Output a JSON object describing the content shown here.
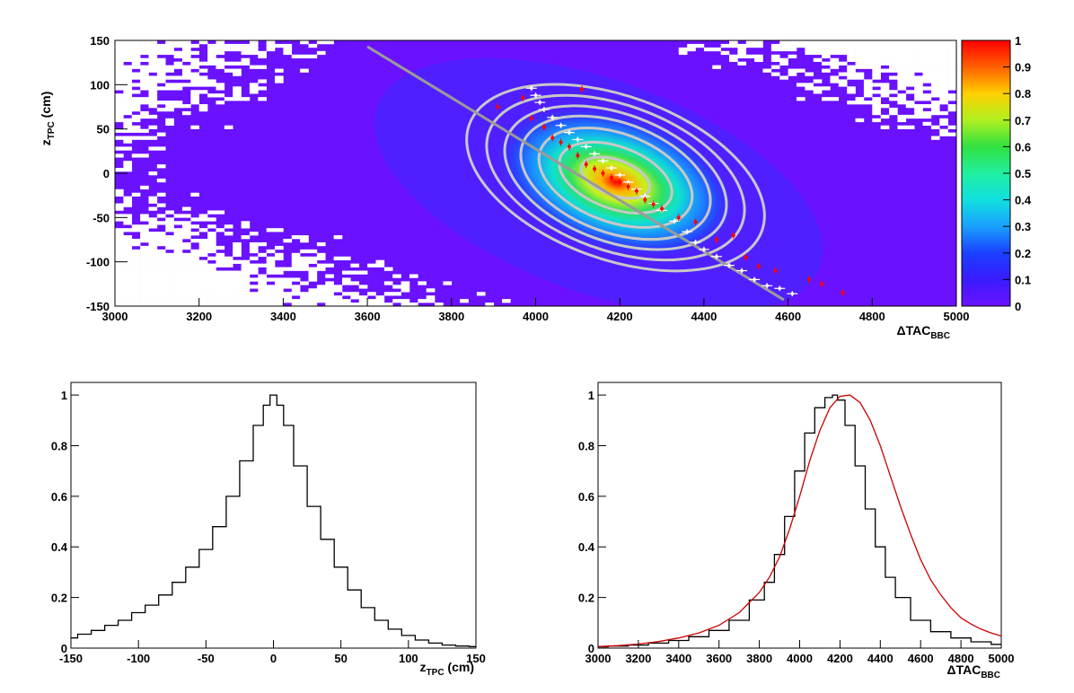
{
  "colors": {
    "background": "#6a11ff",
    "heat_cold": "#3a2bff",
    "contour": "#c8c8c8",
    "fit_line": "#999999",
    "red_points": "#ff0000",
    "white_points": "#ffffff",
    "curve_black": "#000000",
    "curve_red": "#cc0000"
  },
  "chart_data": [
    {
      "type": "heatmap",
      "xlabel": "ΔTAC",
      "xlabel_sub": "BBC",
      "ylabel": "z",
      "ylabel_sub": "TPC",
      "ylabel_unit": " (cm)",
      "xlim": [
        3000,
        5000
      ],
      "ylim": [
        -150,
        150
      ],
      "xticks": [
        3000,
        3200,
        3400,
        3600,
        3800,
        4000,
        4200,
        4400,
        4600,
        4800,
        5000
      ],
      "yticks": [
        -150,
        -100,
        -50,
        0,
        50,
        100,
        150
      ],
      "colorbar": {
        "min": 0,
        "max": 1,
        "ticks": [
          0,
          0.1,
          0.2,
          0.3,
          0.4,
          0.5,
          0.6,
          0.7,
          0.8,
          0.9,
          1
        ]
      },
      "peak": {
        "x": 4150,
        "y": 0
      },
      "contours": [
        {
          "rx": 85,
          "ry": 20
        },
        {
          "rx": 140,
          "ry": 35
        },
        {
          "rx": 190,
          "ry": 50
        },
        {
          "rx": 235,
          "ry": 62
        },
        {
          "rx": 275,
          "ry": 72
        },
        {
          "rx": 320,
          "ry": 82
        },
        {
          "rx": 370,
          "ry": 92
        }
      ],
      "contour_center": {
        "x": 4190,
        "y": -5
      },
      "fit_line": {
        "x": [
          3600,
          4590
        ],
        "y": [
          143,
          -143
        ]
      },
      "profile_white": {
        "x": [
          3990,
          4000,
          4010,
          4020,
          4040,
          4060,
          4080,
          4100,
          4120,
          4140,
          4160,
          4180,
          4200,
          4220,
          4240,
          4260,
          4280,
          4300,
          4330,
          4360,
          4380,
          4400,
          4430,
          4460,
          4490,
          4520,
          4550,
          4580,
          4610
        ],
        "y": [
          96,
          88,
          80,
          72,
          63,
          54,
          46,
          38,
          30,
          22,
          14,
          6,
          -2,
          -10,
          -18,
          -26,
          -34,
          -42,
          -54,
          -66,
          -78,
          -86,
          -94,
          -104,
          -110,
          -120,
          -127,
          -130,
          -136
        ]
      },
      "profile_red": {
        "x": [
          3910,
          3970,
          3990,
          4020,
          4040,
          4060,
          4080,
          4100,
          4110,
          4120,
          4140,
          4160,
          4180,
          4200,
          4220,
          4240,
          4260,
          4280,
          4300,
          4340,
          4380,
          4430,
          4470,
          4500,
          4530,
          4570,
          4650,
          4680,
          4730
        ],
        "y": [
          75,
          85,
          62,
          52,
          40,
          35,
          30,
          20,
          95,
          10,
          5,
          0,
          -5,
          -10,
          -15,
          -20,
          -30,
          -35,
          -40,
          -50,
          -55,
          -75,
          -70,
          -95,
          -105,
          -110,
          -120,
          -125,
          -135
        ]
      }
    },
    {
      "type": "line",
      "xlabel": "z",
      "xlabel_sub": "TPC",
      "xlabel_unit": " (cm)",
      "xlim": [
        -150,
        150
      ],
      "ylim": [
        0,
        1.05
      ],
      "xticks": [
        -150,
        -100,
        -50,
        0,
        50,
        100,
        150
      ],
      "yticks": [
        0,
        0.2,
        0.4,
        0.6,
        0.8,
        1
      ],
      "series": [
        {
          "x": [
            -150,
            -140,
            -130,
            -120,
            -110,
            -100,
            -90,
            -80,
            -70,
            -60,
            -50,
            -40,
            -30,
            -20,
            -10,
            -5,
            0,
            5,
            10,
            20,
            30,
            40,
            50,
            60,
            70,
            80,
            90,
            100,
            110,
            120,
            130,
            140,
            150
          ],
          "values": [
            0.04,
            0.055,
            0.07,
            0.09,
            0.11,
            0.14,
            0.17,
            0.21,
            0.26,
            0.32,
            0.39,
            0.48,
            0.6,
            0.74,
            0.88,
            0.96,
            1.0,
            0.96,
            0.88,
            0.72,
            0.56,
            0.43,
            0.32,
            0.23,
            0.16,
            0.11,
            0.075,
            0.05,
            0.032,
            0.02,
            0.012,
            0.008,
            0.006
          ]
        }
      ]
    },
    {
      "type": "line",
      "xlabel": "ΔTAC",
      "xlabel_sub": "BBC",
      "xlim": [
        3000,
        5000
      ],
      "ylim": [
        0,
        1.05
      ],
      "xticks": [
        3000,
        3200,
        3400,
        3600,
        3800,
        4000,
        4200,
        4400,
        4600,
        4800,
        5000
      ],
      "yticks": [
        0,
        0.2,
        0.4,
        0.6,
        0.8,
        1
      ],
      "series": [
        {
          "x": [
            3000,
            3100,
            3200,
            3300,
            3400,
            3500,
            3600,
            3700,
            3800,
            3850,
            3900,
            3950,
            4000,
            4050,
            4100,
            4150,
            4175,
            4200,
            4250,
            4300,
            4350,
            4400,
            4450,
            4500,
            4600,
            4700,
            4800,
            4900,
            5000
          ],
          "values": [
            0.005,
            0.008,
            0.012,
            0.02,
            0.03,
            0.045,
            0.07,
            0.11,
            0.19,
            0.26,
            0.37,
            0.52,
            0.7,
            0.85,
            0.95,
            0.99,
            1.0,
            0.98,
            0.88,
            0.72,
            0.55,
            0.4,
            0.28,
            0.2,
            0.11,
            0.065,
            0.04,
            0.025,
            0.015
          ]
        },
        {
          "x": [
            3000,
            3100,
            3200,
            3300,
            3400,
            3500,
            3600,
            3700,
            3800,
            3850,
            3900,
            3950,
            4000,
            4050,
            4100,
            4150,
            4200,
            4250,
            4300,
            4350,
            4400,
            4450,
            4500,
            4550,
            4600,
            4650,
            4700,
            4750,
            4800,
            4850,
            4900,
            4950,
            5000
          ],
          "values": [
            0.006,
            0.01,
            0.016,
            0.026,
            0.04,
            0.06,
            0.09,
            0.14,
            0.22,
            0.28,
            0.36,
            0.47,
            0.6,
            0.74,
            0.86,
            0.95,
            0.995,
            1.0,
            0.97,
            0.9,
            0.8,
            0.68,
            0.56,
            0.45,
            0.35,
            0.27,
            0.21,
            0.16,
            0.12,
            0.095,
            0.075,
            0.06,
            0.048
          ]
        }
      ]
    }
  ]
}
